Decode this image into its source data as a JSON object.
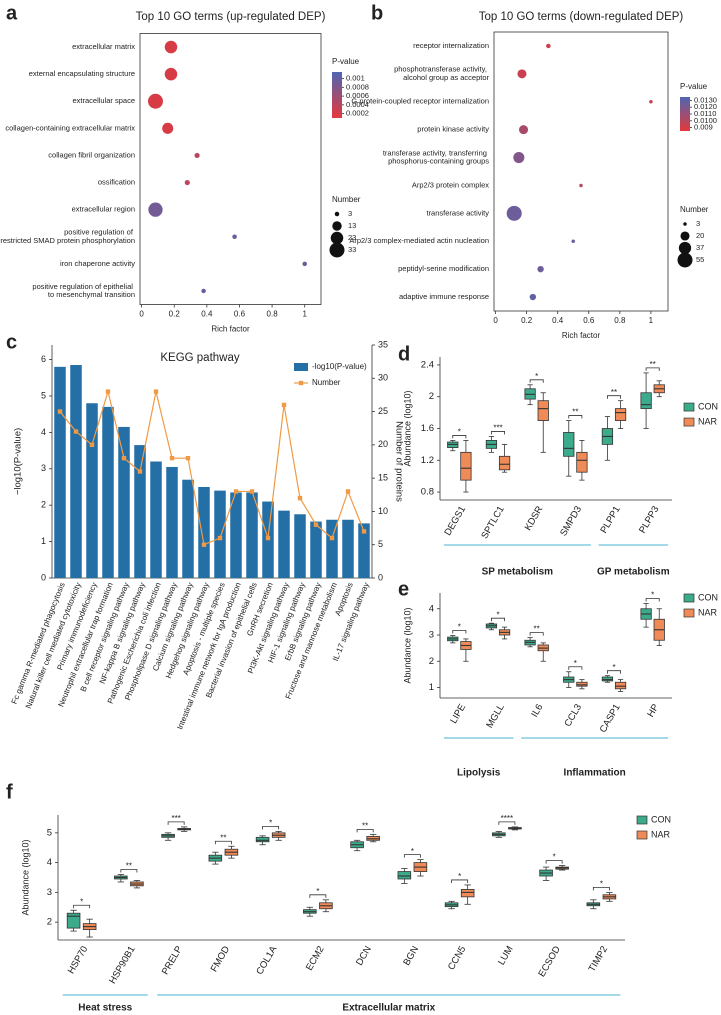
{
  "chart_data": [
    {
      "panel": "a",
      "type": "bubble",
      "title": "Top 10 GO terms (up-regulated DEP)",
      "xlabel": "Rich factor",
      "categories": [
        "extracellular matrix",
        "external encapsulating structure",
        "extracellular space",
        "collagen-containing extracellular matrix",
        "collagen fibril organization",
        "ossification",
        "extracellular region",
        "positive regulation of pathway-restricted SMAD protein phosphorylation",
        "iron chaperone activity",
        "positive regulation of epithelial to mesenchymal transition"
      ],
      "values": [
        0.18,
        0.18,
        0.085,
        0.16,
        0.34,
        0.28,
        0.085,
        0.57,
        1,
        0.38
      ],
      "sizes": [
        23,
        23,
        33,
        18,
        4,
        4,
        30,
        3,
        3,
        3
      ],
      "pvalues": [
        0.0002,
        0.0002,
        0.0002,
        0.0002,
        0.0004,
        0.0004,
        0.0009,
        0.001,
        0.001,
        0.001
      ],
      "xlim": [
        -0.01,
        1.1
      ],
      "xticks": [
        0,
        0.2,
        0.4,
        0.6,
        0.8,
        1
      ],
      "color_scale": {
        "title": "P-value",
        "colors": [
          "#e5383b",
          "#4f66b2"
        ],
        "range": [
          0.0001,
          0.00115
        ],
        "ticks": [
          0.001,
          0.0008,
          0.0006,
          0.0004,
          0.0002
        ]
      },
      "size_legend": {
        "title": "Number",
        "values": [
          3,
          13,
          23,
          33
        ]
      }
    },
    {
      "panel": "b",
      "type": "bubble",
      "title": "Top 10 GO terms (down-regulated DEP)",
      "xlabel": "Rich factor",
      "categories": [
        "receptor internalization",
        "phosphotransferase activity, alcohol group as acceptor",
        "G protein-coupled receptor internalization",
        "protein kinase activity",
        "transferase activity, transferring phosphorus-containing groups",
        "Arp2/3 protein complex",
        "transferase activity",
        "Arp2/3 complex-mediated actin nucleation",
        "peptidyl-serine modification",
        "adaptive immune response"
      ],
      "values": [
        0.34,
        0.17,
        1,
        0.18,
        0.15,
        0.55,
        0.12,
        0.5,
        0.29,
        0.24
      ],
      "sizes": [
        5,
        20,
        3,
        20,
        30,
        3,
        55,
        3,
        10,
        10
      ],
      "pvalues": [
        0.0092,
        0.0095,
        0.0095,
        0.0105,
        0.0118,
        0.01,
        0.0125,
        0.0125,
        0.0125,
        0.013
      ],
      "xlim": [
        -0.01,
        1.11
      ],
      "xticks": [
        0,
        0.2,
        0.4,
        0.6,
        0.8,
        1
      ],
      "color_scale": {
        "title": "P-value",
        "colors": [
          "#e5383b",
          "#4f66b2"
        ],
        "range": [
          0.0085,
          0.0135
        ],
        "ticks": [
          {
            "value": 0.013,
            "label": "0.0130"
          },
          {
            "value": 0.012,
            "label": "0.0120"
          },
          {
            "value": 0.011,
            "label": "0.0110"
          },
          {
            "value": 0.01,
            "label": "0.0100"
          },
          0.009
        ]
      },
      "size_legend": {
        "title": "Number",
        "values": [
          3,
          20,
          37,
          55
        ]
      }
    },
    {
      "panel": "c",
      "type": "bar",
      "title": "KEGG pathway",
      "ylabel": "−log10(P-value)",
      "y2label": "Number of proteins",
      "categories": [
        "Fc gamma R-mediated phagocytosis",
        "Natural killer cell mediated cytotoxicity",
        "Primary immunodeficiency",
        "Neutrophil extracellular trap formation",
        "B cell receptor signaling pathway",
        "NF-kappa B signaling pathway",
        "Pathogenic Escherichia coli infection",
        "Phospholipase D signaling pathway",
        "Calcium signaling pathway",
        "Hedgehog signaling pathway",
        "Apoptosis - multiple species",
        "Intestinal immune network for IgA production",
        "Bacterial invasion of epithelial cells",
        "GnRH secretion",
        "PI3K-Akt signaling pathway",
        "HIF-1 signaling pathway",
        "ErbB signaling pathway",
        "Fructose and mannose metabolism",
        "Apoptosis",
        "IL-17 signaling pathway"
      ],
      "series": [
        {
          "name": "-log10(P-value)",
          "color": "#236fa6",
          "values": [
            5.8,
            5.85,
            4.8,
            4.7,
            4.15,
            3.65,
            3.2,
            3.05,
            2.7,
            2.5,
            2.4,
            2.35,
            2.35,
            2.1,
            1.85,
            1.75,
            1.55,
            1.6,
            1.6,
            1.5
          ]
        },
        {
          "name": "Number",
          "color": "#f19a45",
          "type": "line",
          "axis": "y2",
          "values": [
            25,
            22,
            20,
            28,
            18,
            16,
            28,
            18,
            18,
            5,
            6,
            13,
            13,
            6,
            26,
            12,
            8,
            6,
            13,
            7
          ]
        }
      ],
      "ylim": [
        0,
        6.4
      ],
      "yticks": [
        0,
        1,
        2,
        3,
        4,
        5,
        6
      ],
      "y2lim": [
        0,
        35
      ],
      "y2ticks": [
        0,
        5,
        10,
        15,
        20,
        25,
        30,
        35
      ],
      "legend": "upper right"
    },
    {
      "panel": "d",
      "type": "box",
      "ylabel": "Abundance (log10)",
      "categories": [
        "DEGS1",
        "SPTLC1",
        "KDSR",
        "SMPD3",
        "PLPP1",
        "PLPP3"
      ],
      "series": [
        {
          "name": "CON",
          "color": "#3bab8c",
          "values": [
            [
              1.32,
              1.36,
              1.4,
              1.43,
              1.45
            ],
            [
              1.3,
              1.35,
              1.4,
              1.45,
              1.5
            ],
            [
              1.9,
              1.97,
              2.03,
              2.1,
              2.15
            ],
            [
              1.0,
              1.25,
              1.35,
              1.55,
              1.7
            ],
            [
              1.2,
              1.4,
              1.5,
              1.6,
              1.75
            ],
            [
              1.6,
              1.85,
              1.9,
              2.05,
              2.3
            ]
          ]
        },
        {
          "name": "NAR",
          "color": "#ef8b57",
          "values": [
            [
              0.8,
              0.95,
              1.1,
              1.3,
              1.45
            ],
            [
              1.05,
              1.08,
              1.15,
              1.25,
              1.4
            ],
            [
              1.3,
              1.7,
              1.85,
              1.95,
              2.05
            ],
            [
              0.95,
              1.05,
              1.2,
              1.3,
              1.45
            ],
            [
              1.6,
              1.7,
              1.8,
              1.85,
              1.95
            ],
            [
              2.0,
              2.05,
              2.1,
              2.15,
              2.2
            ]
          ]
        }
      ],
      "significance": [
        "*",
        "***",
        "*",
        "**",
        "**",
        "**"
      ],
      "groups": [
        {
          "label": "SP metabolism",
          "categories": [
            "DEGS1",
            "SPTLC1",
            "KDSR",
            "SMPD3"
          ]
        },
        {
          "label": "GP metabolism",
          "categories": [
            "PLPP1",
            "PLPP3"
          ]
        }
      ],
      "ylim": [
        0.7,
        2.5
      ],
      "yticks": [
        0.8,
        1.2,
        1.6,
        2,
        2.4
      ],
      "legend": "right"
    },
    {
      "panel": "e",
      "type": "box",
      "ylabel": "Abundance (log10)",
      "categories": [
        "LIPE",
        "MGLL",
        "IL6",
        "CCL3",
        "CASP1",
        "HP"
      ],
      "series": [
        {
          "name": "CON",
          "color": "#3bab8c",
          "values": [
            [
              2.7,
              2.78,
              2.85,
              2.92,
              2.98
            ],
            [
              3.2,
              3.27,
              3.35,
              3.42,
              3.45
            ],
            [
              2.55,
              2.62,
              2.72,
              2.8,
              2.9
            ],
            [
              1.0,
              1.2,
              1.3,
              1.4,
              1.6
            ],
            [
              1.2,
              1.25,
              1.3,
              1.4,
              1.45
            ],
            [
              3.3,
              3.6,
              3.8,
              4.0,
              4.2
            ]
          ]
        },
        {
          "name": "NAR",
          "color": "#ef8b57",
          "values": [
            [
              2.0,
              2.45,
              2.6,
              2.75,
              2.85
            ],
            [
              2.85,
              3.0,
              3.1,
              3.2,
              3.3
            ],
            [
              2.0,
              2.4,
              2.5,
              2.62,
              2.7
            ],
            [
              0.95,
              1.05,
              1.1,
              1.2,
              1.3
            ],
            [
              0.85,
              0.95,
              1.05,
              1.2,
              1.3
            ],
            [
              2.6,
              2.8,
              3.2,
              3.6,
              4.0
            ]
          ]
        }
      ],
      "significance": [
        "*",
        "*",
        "**",
        "*",
        "*",
        "*"
      ],
      "groups": [
        {
          "label": "Lipolysis",
          "categories": [
            "LIPE",
            "MGLL"
          ]
        },
        {
          "label": "Inflammation",
          "categories": [
            "IL6",
            "CCL3",
            "CASP1",
            "HP"
          ]
        }
      ],
      "ylim": [
        0.6,
        4.6
      ],
      "yticks": [
        1,
        2,
        3,
        4
      ],
      "legend": "upper right"
    },
    {
      "panel": "f",
      "type": "box",
      "ylabel": "Abundance (log10)",
      "categories": [
        "HSP70",
        "HSP90B1",
        "PRELP",
        "FMOD",
        "COL1A",
        "ECM2",
        "DCN",
        "BGN",
        "CCN5",
        "LUM",
        "ECSOD",
        "TIMP2"
      ],
      "series": [
        {
          "name": "CON",
          "color": "#3bab8c",
          "values": [
            [
              1.7,
              1.8,
              2.2,
              2.3,
              2.4
            ],
            [
              3.35,
              3.45,
              3.5,
              3.55,
              3.6
            ],
            [
              4.75,
              4.85,
              4.9,
              4.95,
              5.0
            ],
            [
              3.95,
              4.05,
              4.15,
              4.25,
              4.35
            ],
            [
              4.6,
              4.7,
              4.75,
              4.85,
              4.9
            ],
            [
              2.2,
              2.3,
              2.35,
              2.42,
              2.5
            ],
            [
              4.4,
              4.5,
              4.6,
              4.7,
              4.75
            ],
            [
              3.3,
              3.45,
              3.55,
              3.7,
              3.8
            ],
            [
              2.45,
              2.52,
              2.58,
              2.65,
              2.7
            ],
            [
              4.85,
              4.9,
              4.95,
              5.0,
              5.05
            ],
            [
              3.4,
              3.55,
              3.65,
              3.75,
              3.85
            ],
            [
              2.45,
              2.55,
              2.6,
              2.65,
              2.75
            ]
          ]
        },
        {
          "name": "NAR",
          "color": "#ef8b57",
          "values": [
            [
              1.5,
              1.75,
              1.85,
              1.95,
              2.1
            ],
            [
              3.15,
              3.22,
              3.28,
              3.35,
              3.4
            ],
            [
              5.05,
              5.1,
              5.12,
              5.15,
              5.2
            ],
            [
              4.15,
              4.25,
              4.35,
              4.45,
              4.55
            ],
            [
              4.75,
              4.85,
              4.92,
              5.0,
              5.05
            ],
            [
              2.35,
              2.45,
              2.55,
              2.65,
              2.75
            ],
            [
              4.7,
              4.75,
              4.8,
              4.88,
              4.95
            ],
            [
              3.55,
              3.7,
              3.85,
              4.0,
              4.1
            ],
            [
              2.6,
              2.85,
              3.0,
              3.1,
              3.25
            ],
            [
              5.1,
              5.13,
              5.15,
              5.18,
              5.2
            ],
            [
              3.75,
              3.78,
              3.82,
              3.85,
              3.9
            ],
            [
              2.7,
              2.78,
              2.85,
              2.92,
              3.0
            ]
          ]
        }
      ],
      "significance": [
        "*",
        "**",
        "***",
        "**",
        "*",
        "*",
        "**",
        "*",
        "*",
        "****",
        "*",
        "*"
      ],
      "groups": [
        {
          "label": "Heat stress",
          "categories": [
            "HSP70",
            "HSP90B1"
          ]
        },
        {
          "label": "Extracellular matrix",
          "categories": [
            "PRELP",
            "FMOD",
            "COL1A",
            "ECM2",
            "DCN",
            "BGN",
            "CCN5",
            "LUM",
            "ECSOD",
            "TIMP2"
          ]
        }
      ],
      "ylim": [
        1.4,
        5.6
      ],
      "yticks": [
        2,
        3,
        4,
        5
      ],
      "legend": "upper right"
    }
  ]
}
